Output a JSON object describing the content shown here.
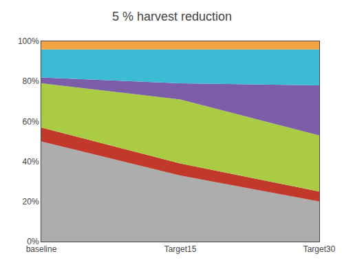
{
  "chart_data": {
    "type": "area",
    "stacked": true,
    "title": "5 % harvest reduction",
    "categories": [
      "baseline",
      "Target15",
      "Target30"
    ],
    "series": [
      {
        "color": "#ADADAD",
        "values": [
          0.5,
          0.33,
          0.2
        ]
      },
      {
        "color": "#C0392B",
        "values": [
          0.07,
          0.06,
          0.05
        ]
      },
      {
        "color": "#AACC44",
        "values": [
          0.22,
          0.32,
          0.28
        ]
      },
      {
        "color": "#7B5EA7",
        "values": [
          0.03,
          0.08,
          0.25
        ]
      },
      {
        "color": "#3BBCD4",
        "values": [
          0.14,
          0.17,
          0.18
        ]
      },
      {
        "color": "#F4A442",
        "values": [
          0.04,
          0.04,
          0.04
        ]
      }
    ],
    "ylim": [
      0,
      1.0
    ],
    "yticks": [
      {
        "value": 0.0,
        "label": "0%"
      },
      {
        "value": 0.2,
        "label": "20%"
      },
      {
        "value": 0.4,
        "label": "40%"
      },
      {
        "value": 0.6,
        "label": "60%"
      },
      {
        "value": 0.8,
        "label": "80%"
      },
      {
        "value": 1.0,
        "label": "100%"
      }
    ],
    "grid": false
  }
}
